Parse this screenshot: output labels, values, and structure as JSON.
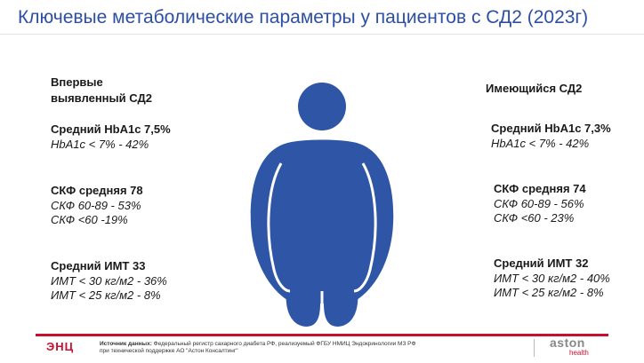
{
  "title": "Ключевые метаболические параметры у пациентов с СД2 (2023г)",
  "left": {
    "heading_line1": "Впервые",
    "heading_line2": "выявленный СД2",
    "hba1c_title": "Средний HbA1c 7,5%",
    "hba1c_detail": "HbA1c < 7%  - 42%",
    "gfr_title": "СКФ средняя 78",
    "gfr_detail1": "СКФ 60-89  - 53%",
    "gfr_detail2": "СКФ <60     -19%",
    "bmi_title": "Средний ИМТ 33",
    "bmi_detail1": "ИМТ < 30 кг/м2 - 36%",
    "bmi_detail2": "ИМТ < 25 кг/м2 - 8%"
  },
  "right": {
    "heading": "Имеющийся СД2",
    "hba1c_title": "Средний HbA1c 7,3%",
    "hba1c_detail": "HbA1c < 7%  - 42%",
    "gfr_title": "СКФ средняя 74",
    "gfr_detail1": "СКФ 60-89  - 56%",
    "gfr_detail2": "СКФ <60     - 23%",
    "bmi_title": "Средний ИМТ 32",
    "bmi_detail1": "ИМТ < 30 кг/м2  - 40%",
    "bmi_detail2": "ИМТ < 25 кг/м2   - 8%"
  },
  "footer": {
    "logo_left": "ЭНЦ",
    "source_label": "Источник данных:",
    "source_line1": " Федеральный регистр сахарного диабета РФ, реализуемый ФГБУ НМИЦ Эндокринологии МЗ РФ",
    "source_line2": "при технической поддержке АО \"Астон Консалтинг\"",
    "logo_right_main": "aston",
    "logo_right_sub": "health"
  },
  "colors": {
    "title": "#2d4fa3",
    "figure": "#2f56a6",
    "figure_outline": "#1f3f85",
    "accent_red": "#c8102e"
  },
  "icons": {
    "figure": "obese-person-icon"
  }
}
